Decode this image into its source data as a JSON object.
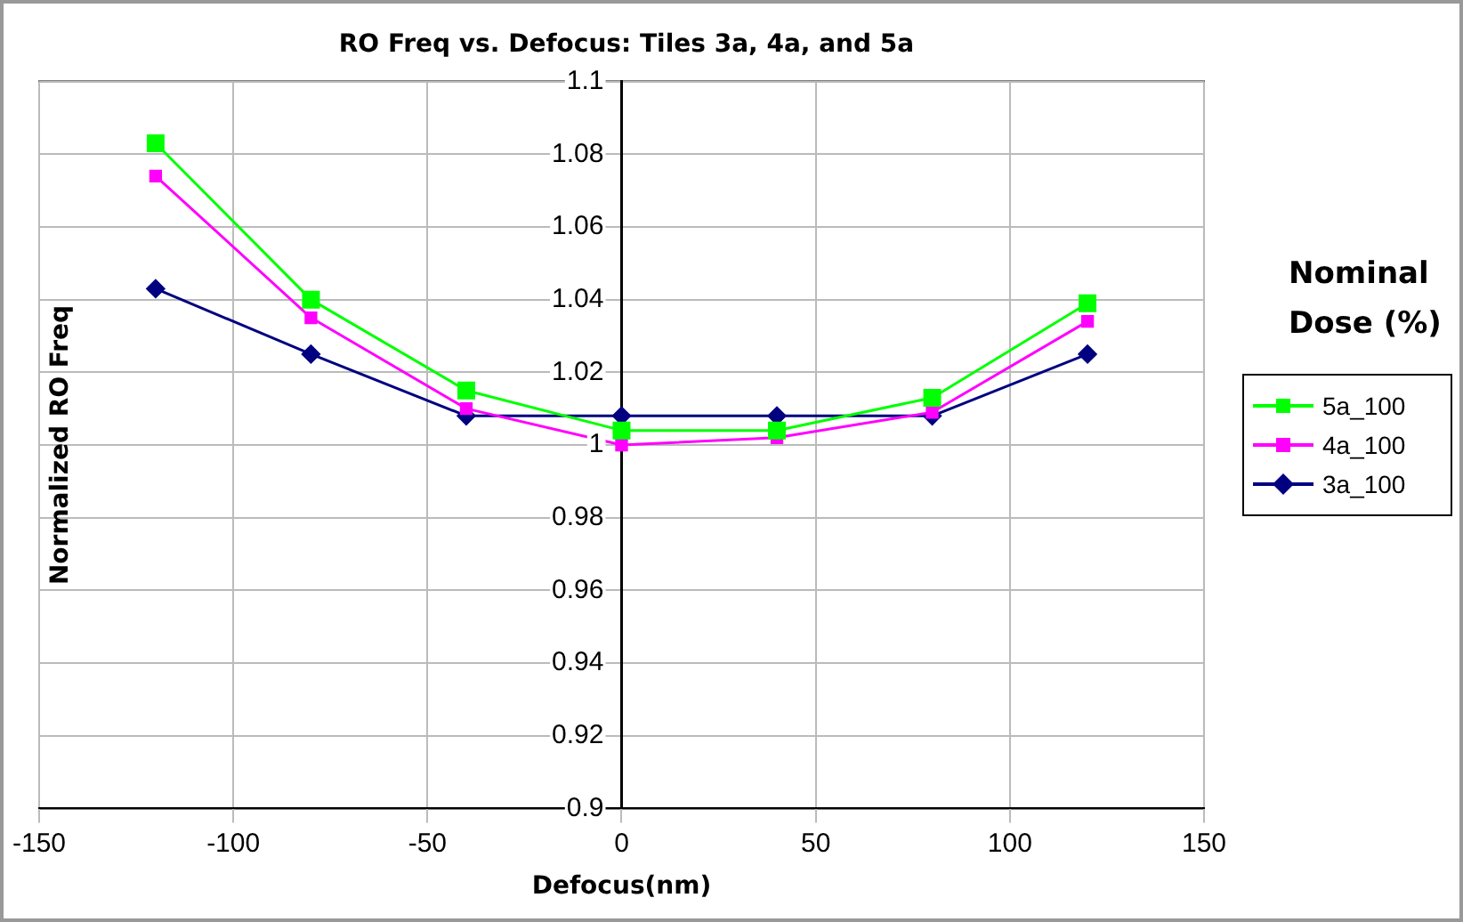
{
  "chart_data": {
    "type": "line",
    "title": "RO Freq vs. Defocus: Tiles 3a, 4a, and 5a",
    "xlabel": "Defocus(nm)",
    "ylabel": "Normalized RO Freq",
    "legend_title": "Nominal Dose (%)",
    "x": [
      -120,
      -80,
      -40,
      0,
      40,
      80,
      120
    ],
    "series": [
      {
        "name": "5a_100",
        "color": "#00ff00",
        "marker": "square",
        "values": [
          1.083,
          1.04,
          1.015,
          1.004,
          1.004,
          1.013,
          1.039
        ]
      },
      {
        "name": "4a_100",
        "color": "#ff00ff",
        "marker": "square",
        "values": [
          1.074,
          1.035,
          1.01,
          1.0,
          1.002,
          1.009,
          1.034
        ]
      },
      {
        "name": "3a_100",
        "color": "#000080",
        "marker": "diamond",
        "values": [
          1.043,
          1.025,
          1.008,
          1.008,
          1.008,
          1.008,
          1.025
        ]
      }
    ],
    "xlim": [
      -150,
      150
    ],
    "xticks": [
      -150,
      -100,
      -50,
      0,
      50,
      100,
      150
    ],
    "ylim": [
      0.9,
      1.1
    ],
    "yticks": [
      0.9,
      0.92,
      0.94,
      0.96,
      0.98,
      1,
      1.02,
      1.04,
      1.06,
      1.08,
      1.1
    ],
    "grid": true,
    "legend": "right"
  }
}
